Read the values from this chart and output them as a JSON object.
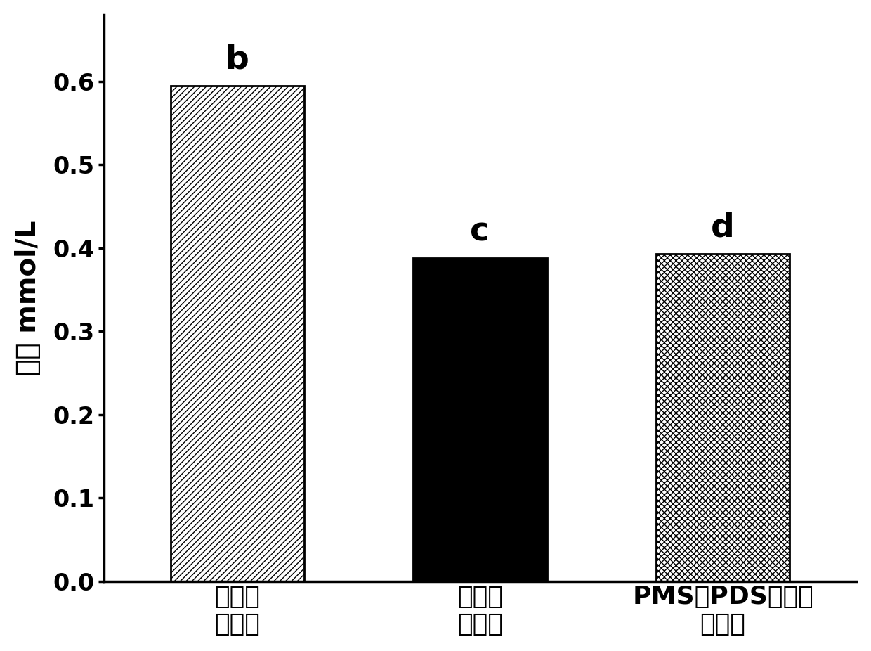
{
  "categories": [
    "加酶前\n测定値",
    "加酶后\n测定値",
    "PMS与PDS浓度和\n理论値"
  ],
  "values": [
    0.595,
    0.388,
    0.393
  ],
  "labels": [
    "b",
    "c",
    "d"
  ],
  "ylabel": "浓度 mmol/L",
  "ylim": [
    0.0,
    0.68
  ],
  "yticks": [
    0.0,
    0.1,
    0.2,
    0.3,
    0.4,
    0.5,
    0.6
  ],
  "bar_width": 0.55,
  "hatch_patterns": [
    "////",
    "",
    "xxxx"
  ],
  "bar_facecolors": [
    "white",
    "black",
    "white"
  ],
  "bar_edgecolors": [
    "black",
    "black",
    "black"
  ],
  "tick_fontsize": 24,
  "ylabel_fontsize": 28,
  "xlabel_fontsize": 26,
  "annotation_fontsize": 34,
  "background_color": "white",
  "figure_size": [
    12.4,
    9.26
  ],
  "dpi": 100
}
